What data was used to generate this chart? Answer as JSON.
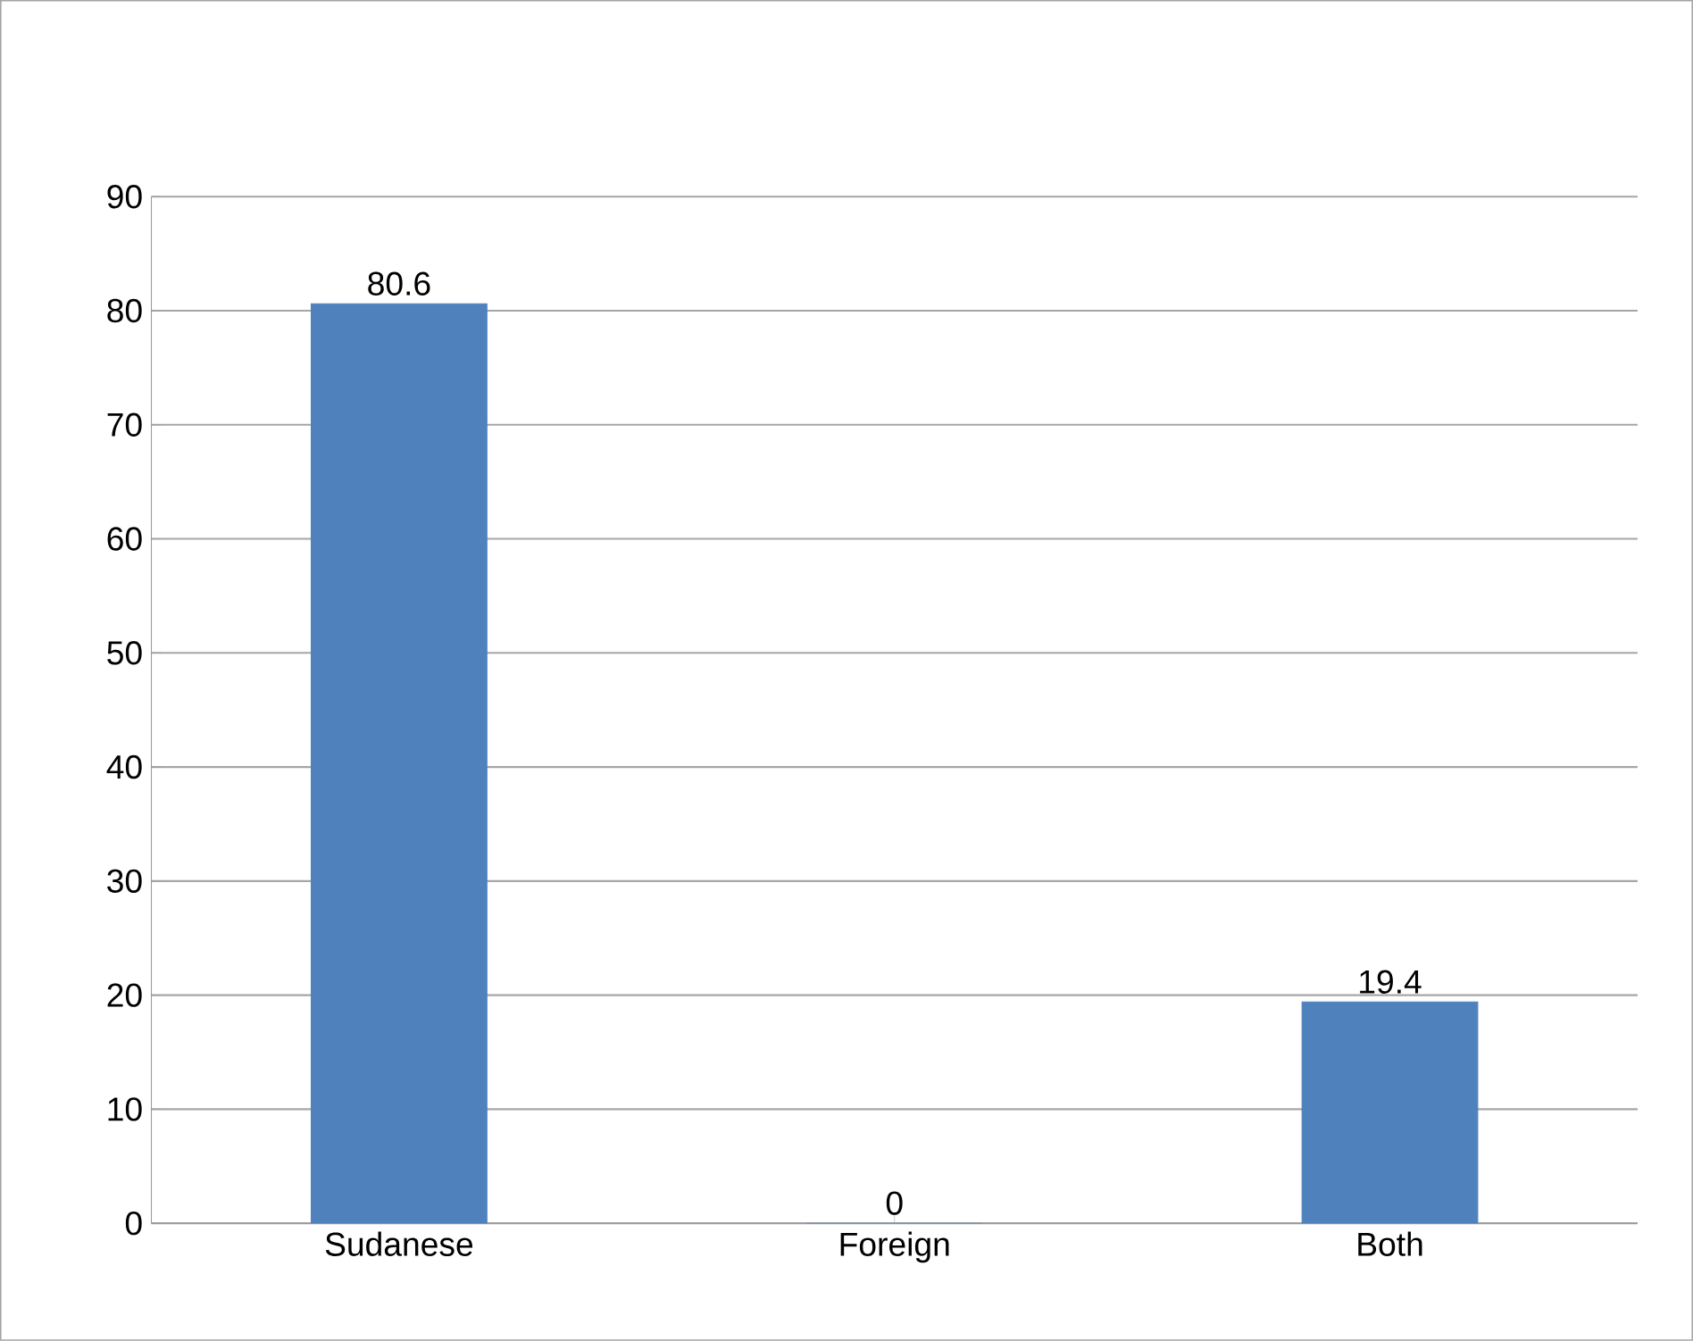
{
  "chart_data": {
    "type": "bar",
    "categories": [
      "Sudanese",
      "Foreign",
      "Both"
    ],
    "values": [
      80.6,
      0,
      19.4
    ],
    "color": "#4f81bd",
    "ylim": [
      0,
      90
    ],
    "yticks": [
      0,
      10,
      20,
      30,
      40,
      50,
      60,
      70,
      80,
      90
    ],
    "grid": "y",
    "data_labels": true
  }
}
